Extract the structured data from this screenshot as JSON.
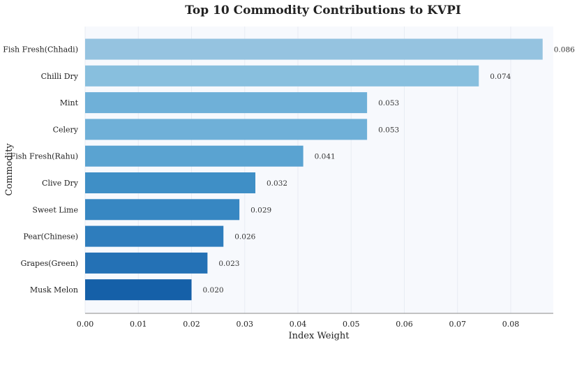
{
  "chart_data": {
    "type": "bar",
    "orientation": "horizontal",
    "title": "Top 10 Commodity Contributions to KVPI",
    "xlabel": "Index Weight",
    "ylabel": "Commodity",
    "categories": [
      "Fish Fresh(Chhadi)",
      "Chilli Dry",
      "Mint",
      "Celery",
      "Fish Fresh(Rahu)",
      "Clive Dry",
      "Sweet Lime",
      "Pear(Chinese)",
      "Grapes(Green)",
      "Musk Melon"
    ],
    "values": [
      0.086,
      0.074,
      0.053,
      0.053,
      0.041,
      0.032,
      0.029,
      0.026,
      0.023,
      0.02
    ],
    "data_labels": [
      "0.086",
      "0.074",
      "0.053",
      "0.053",
      "0.041",
      "0.032",
      "0.029",
      "0.026",
      "0.023",
      "0.020"
    ],
    "xlim": [
      0,
      0.088
    ],
    "xticks": [
      0.0,
      0.01,
      0.02,
      0.03,
      0.04,
      0.05,
      0.06,
      0.07,
      0.08
    ],
    "xtick_labels": [
      "0.00",
      "0.01",
      "0.02",
      "0.03",
      "0.04",
      "0.05",
      "0.06",
      "0.07",
      "0.08"
    ],
    "grid": true,
    "legend": "none",
    "colors": {
      "bars": [
        "#95c3e0",
        "#88bfde",
        "#6fb0d8",
        "#6fb0d8",
        "#5aa3d1",
        "#3f8fc6",
        "#3787c2",
        "#2e7dbd",
        "#2471b5",
        "#1560a8"
      ],
      "plot_background": "#f7f9fd"
    }
  }
}
